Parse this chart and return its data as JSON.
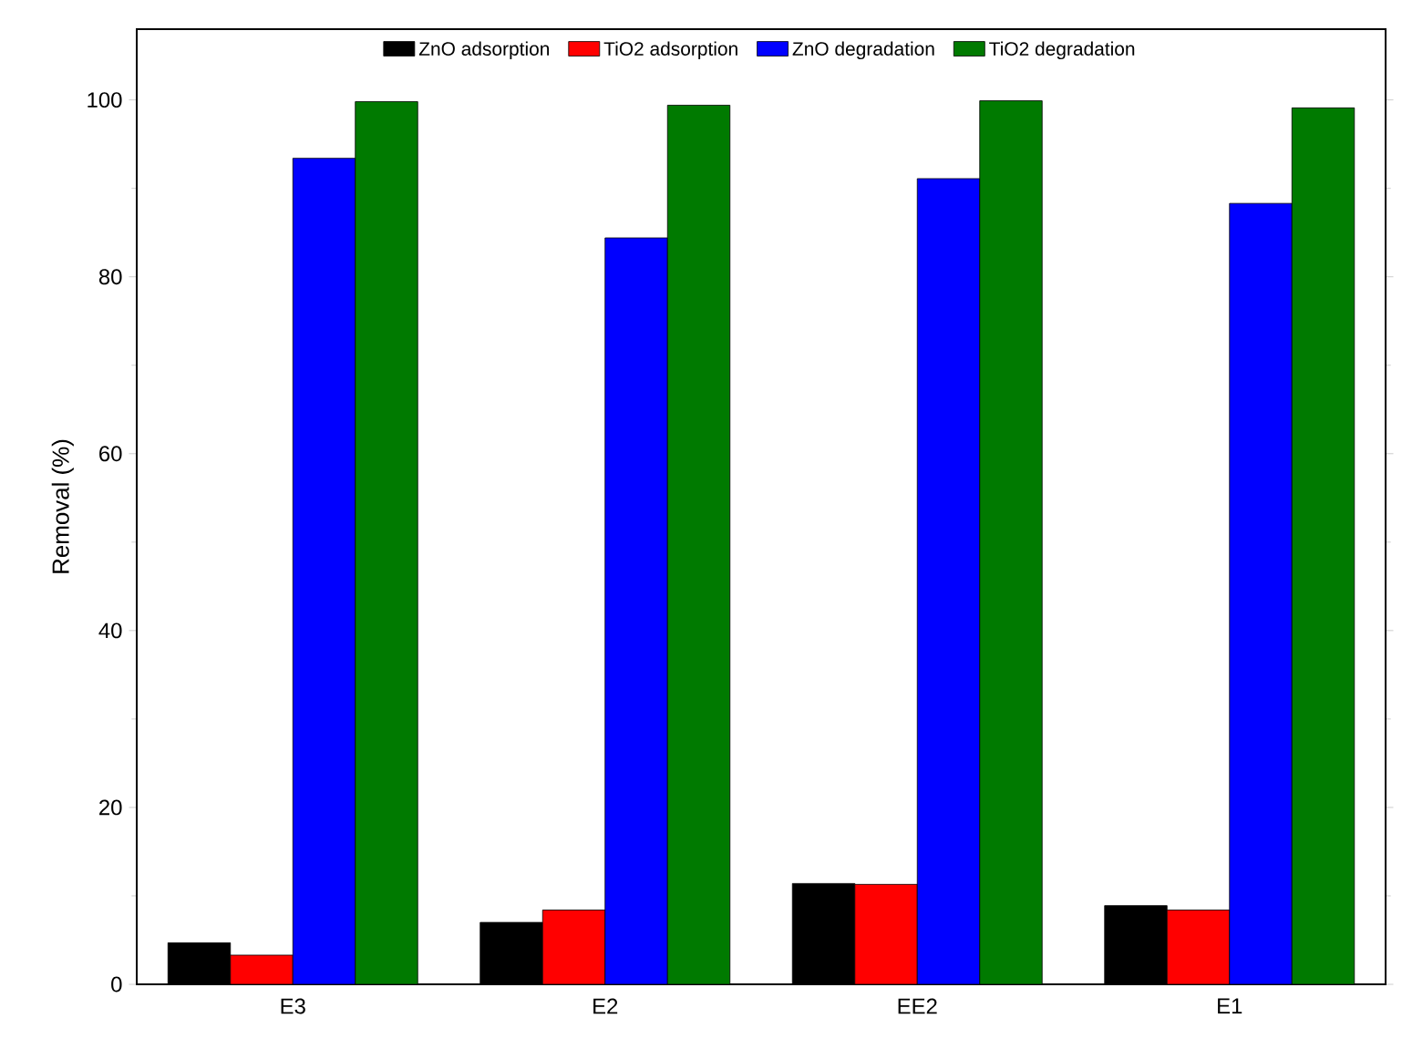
{
  "chart_data": {
    "type": "bar",
    "ylabel": "Removal (%)",
    "categories": [
      "E3",
      "E2",
      "EE2",
      "E1"
    ],
    "series": [
      {
        "name": "ZnO adsorption",
        "color": "#000000",
        "values": [
          4.7,
          7.0,
          11.4,
          8.9
        ]
      },
      {
        "name": "TiO2 adsorption",
        "color": "#ff0000",
        "values": [
          3.3,
          8.4,
          11.3,
          8.4
        ]
      },
      {
        "name": "ZnO degradation",
        "color": "#0000ff",
        "values": [
          93.4,
          84.4,
          91.1,
          88.3
        ]
      },
      {
        "name": "TiO2 degradation",
        "color": "#007a00",
        "values": [
          99.8,
          99.4,
          99.9,
          99.1
        ]
      }
    ],
    "ylim": [
      0,
      108
    ],
    "yticks": [
      0,
      20,
      40,
      60,
      80,
      100
    ],
    "legend": "top"
  }
}
